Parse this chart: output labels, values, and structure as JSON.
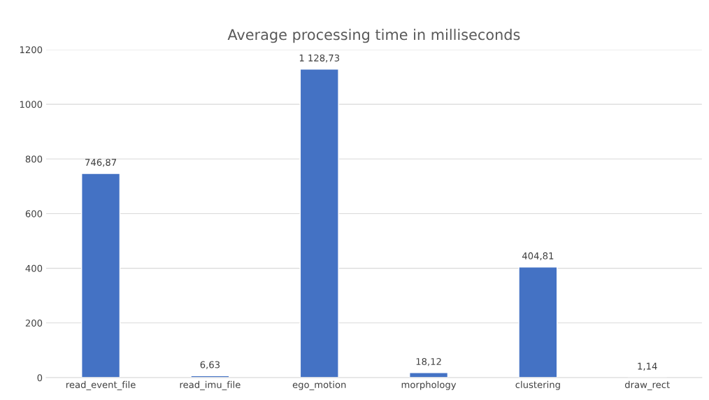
{
  "chart_data": {
    "type": "bar",
    "title": "Average processing time in milliseconds",
    "categories": [
      "read_event_file",
      "read_imu_file",
      "ego_motion",
      "morphology",
      "clustering",
      "draw_rect"
    ],
    "values": [
      746.87,
      6.63,
      1128.73,
      18.12,
      404.81,
      1.14
    ],
    "value_labels": [
      "746,87",
      "6,63",
      "1 128,73",
      "18,12",
      "404,81",
      "1,14"
    ],
    "color": "#4472c4",
    "ylim": [
      0,
      1200
    ],
    "yticks": [
      0,
      200,
      400,
      600,
      800,
      1000,
      1200
    ],
    "grid": "y",
    "legend": false
  }
}
